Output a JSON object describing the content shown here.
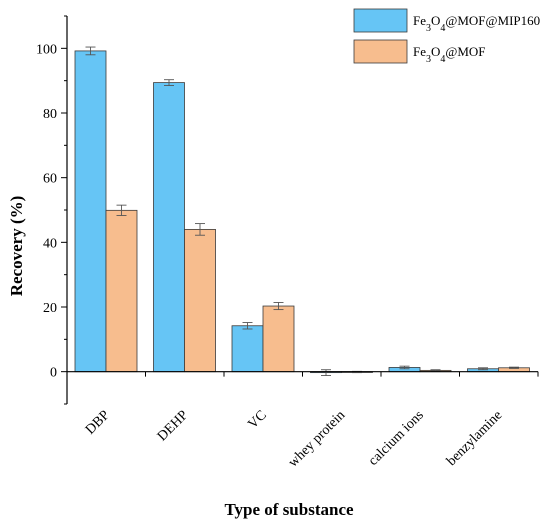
{
  "chart_data": {
    "type": "bar",
    "xlabel": "Type of substance",
    "ylabel": "Recovery (%)",
    "ylim": [
      -10,
      110
    ],
    "yticks": [
      0,
      20,
      40,
      60,
      80,
      100
    ],
    "categories": [
      "DBP",
      "DEHP",
      "VC",
      "whey protein",
      "calcium ions",
      "benzylamine"
    ],
    "series": [
      {
        "name": "Fe3O4@MOF@MIP160",
        "legend_parts": [
          [
            "Fe",
            "normal"
          ],
          [
            "3",
            "sub"
          ],
          [
            "O",
            "normal"
          ],
          [
            "4",
            "sub"
          ],
          [
            "@MOF@MIP160",
            "normal"
          ]
        ],
        "color": "#66c5f5",
        "values": [
          99.2,
          89.4,
          14.2,
          -0.3,
          1.3,
          0.9
        ],
        "errors": [
          1.2,
          0.9,
          1.0,
          0.9,
          0.4,
          0.3
        ]
      },
      {
        "name": "Fe3O4@MOF",
        "legend_parts": [
          [
            "Fe",
            "normal"
          ],
          [
            "3",
            "sub"
          ],
          [
            "O",
            "normal"
          ],
          [
            "4",
            "sub"
          ],
          [
            "@MOF",
            "normal"
          ]
        ],
        "color": "#f7bd8e",
        "values": [
          49.9,
          44.0,
          20.3,
          -0.1,
          0.4,
          1.2
        ],
        "errors": [
          1.6,
          1.8,
          1.1,
          0.2,
          0.2,
          0.2
        ]
      }
    ],
    "grid": false,
    "legend_position": "top-right"
  }
}
